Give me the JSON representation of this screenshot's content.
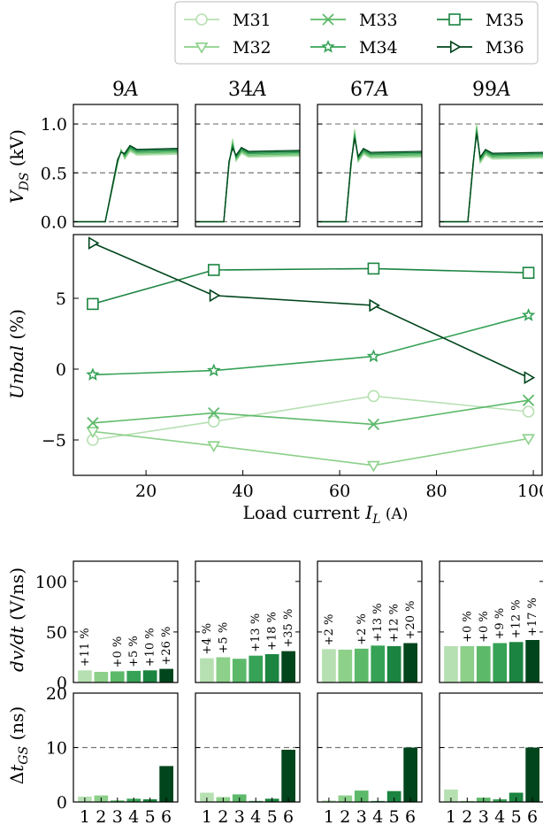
{
  "colors": {
    "M31": "#b7e0b2",
    "M32": "#8cd08a",
    "M33": "#5db96a",
    "M34": "#36a256",
    "M35": "#1b8440",
    "M36": "#00451c"
  },
  "legend": [
    {
      "name": "M31",
      "marker": "circle"
    },
    {
      "name": "M32",
      "marker": "triangle-down"
    },
    {
      "name": "M33",
      "marker": "x"
    },
    {
      "name": "M34",
      "marker": "star"
    },
    {
      "name": "M35",
      "marker": "square"
    },
    {
      "name": "M36",
      "marker": "triangle-right"
    }
  ],
  "chart_data": [
    {
      "type": "line",
      "panel": "vds-waveforms",
      "titles": [
        "9A",
        "34A",
        "67A",
        "99A"
      ],
      "ylabel": "V_DS (kV)",
      "ylim": [
        -0.05,
        1.2
      ],
      "yticks": [
        "0.0",
        "0.5",
        "1.0"
      ],
      "dashed_reference_lines": [
        0.0,
        0.5,
        1.0
      ],
      "overshoot_peak_kV": [
        0.74,
        0.85,
        0.95,
        1.0
      ],
      "steady_state_kV": [
        0.72,
        0.7,
        0.69,
        0.68
      ]
    },
    {
      "type": "line",
      "panel": "unbalance",
      "xlabel": "Load current",
      "xlabel_symbol": "I",
      "xlabel_subscript": "L",
      "xlabel_unit": "(A)",
      "ylabel": "Unbal (%)",
      "xlim": [
        5,
        102
      ],
      "ylim": [
        -7.5,
        9.5
      ],
      "xticks": [
        "20",
        "40",
        "60",
        "80",
        "100"
      ],
      "yticks": [
        "-5",
        "0",
        "5"
      ],
      "x": [
        9,
        34,
        67,
        99
      ],
      "series": [
        {
          "name": "M31",
          "values": [
            -5.0,
            -3.7,
            -1.9,
            -3.0
          ]
        },
        {
          "name": "M32",
          "values": [
            -4.4,
            -5.4,
            -6.8,
            -4.9
          ]
        },
        {
          "name": "M33",
          "values": [
            -3.8,
            -3.1,
            -3.9,
            -2.2
          ]
        },
        {
          "name": "M34",
          "values": [
            -0.4,
            -0.1,
            0.9,
            3.8
          ]
        },
        {
          "name": "M35",
          "values": [
            4.6,
            7.0,
            7.1,
            6.8
          ]
        },
        {
          "name": "M36",
          "values": [
            8.9,
            5.2,
            4.5,
            -0.6
          ]
        }
      ]
    },
    {
      "type": "bar",
      "panel": "dvdt",
      "ylabel": "dv/dt (V/ns)",
      "ylim": [
        0,
        120
      ],
      "yticks": [
        "0",
        "50",
        "100"
      ],
      "categories": [
        "1",
        "2",
        "3",
        "4",
        "5",
        "6"
      ],
      "groups": [
        {
          "current": "9A",
          "values": [
            12,
            10.5,
            11,
            11.5,
            12,
            13.5
          ],
          "labels": [
            "+11 %",
            "",
            "+0 %",
            "+5 %",
            "+10 %",
            "+26 %"
          ]
        },
        {
          "current": "34A",
          "values": [
            24,
            25,
            23.5,
            26.5,
            28,
            31
          ],
          "labels": [
            "+4 %",
            "+5 %",
            "",
            "+13 %",
            "+18 %",
            "+35 %"
          ]
        },
        {
          "current": "67A",
          "values": [
            33,
            32.5,
            33.5,
            36.5,
            36,
            39
          ],
          "labels": [
            "+2 %",
            "",
            "+2 %",
            "+13 %",
            "+12 %",
            "+20 %"
          ]
        },
        {
          "current": "99A",
          "values": [
            36,
            36,
            36,
            39,
            40,
            42
          ],
          "labels": [
            "",
            "+0 %",
            "+0 %",
            "+9 %",
            "+12 %",
            "+17 %"
          ]
        }
      ]
    },
    {
      "type": "bar",
      "panel": "delta-tgs",
      "ylabel": "Δt_GS (ns)",
      "ylim": [
        0,
        20
      ],
      "yticks": [
        "0",
        "10",
        "20"
      ],
      "dashed_reference_line": 10,
      "categories": [
        "1",
        "2",
        "3",
        "4",
        "5",
        "6"
      ],
      "groups": [
        {
          "current": "9A",
          "values": [
            1.0,
            1.2,
            0.3,
            0.6,
            0.5,
            6.6
          ]
        },
        {
          "current": "34A",
          "values": [
            1.7,
            0.9,
            1.4,
            0.2,
            0.6,
            9.6
          ]
        },
        {
          "current": "67A",
          "values": [
            0.3,
            1.2,
            2.1,
            0.2,
            2.0,
            10.0
          ]
        },
        {
          "current": "99A",
          "values": [
            2.3,
            0.2,
            0.8,
            0.5,
            1.7,
            10.0
          ]
        }
      ]
    }
  ]
}
